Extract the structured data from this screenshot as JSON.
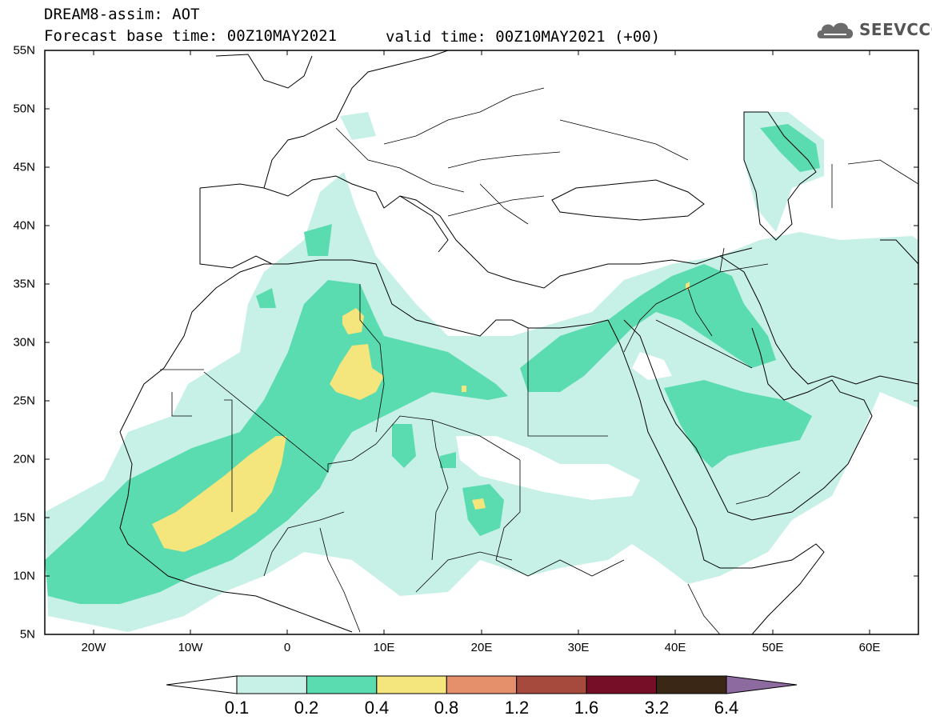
{
  "header": {
    "title": "DREAM8-assim: AOT",
    "base_time": "Forecast base time: 00Z10MAY2021",
    "valid_time": "valid time: 00Z10MAY2021 (+00)"
  },
  "logo": {
    "text": "SEEVCCC",
    "icon": "cloud-icon"
  },
  "axes": {
    "lat_labels": [
      "55N",
      "50N",
      "45N",
      "40N",
      "35N",
      "30N",
      "25N",
      "20N",
      "15N",
      "10N",
      "5N"
    ],
    "lon_labels": [
      "20W",
      "10W",
      "0",
      "10E",
      "20E",
      "30E",
      "40E",
      "50E",
      "60E"
    ]
  },
  "colorbar": {
    "labels": [
      "0.1",
      "0.2",
      "0.4",
      "0.8",
      "1.2",
      "1.6",
      "3.2",
      "6.4"
    ],
    "colors": [
      "#ffffff",
      "#c7f0e6",
      "#5adcb0",
      "#f4e57c",
      "#e5906a",
      "#a74a3e",
      "#760e28",
      "#3a2716",
      "#8d6aa0"
    ]
  },
  "colors": {
    "light_teal": "#c7f0e6",
    "teal": "#5adcb0",
    "yellow": "#f4e57c",
    "coastline": "#000000"
  }
}
